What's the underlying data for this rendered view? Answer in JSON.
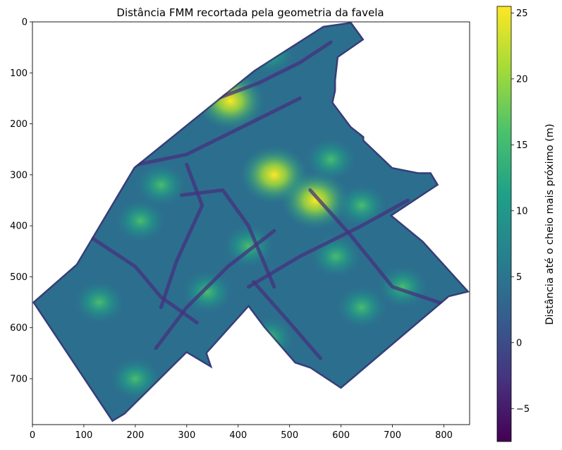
{
  "chart_data": {
    "type": "heatmap",
    "title": "Distância FMM recortada pela geometria da favela",
    "xlabel": "",
    "ylabel": "",
    "xlim": [
      0,
      850
    ],
    "ylim": [
      790,
      0
    ],
    "x_ticks": [
      0,
      100,
      200,
      300,
      400,
      500,
      600,
      700,
      800
    ],
    "y_ticks": [
      0,
      100,
      200,
      300,
      400,
      500,
      600,
      700
    ],
    "colorbar": {
      "label": "Distância até o cheio mais próximo (m)",
      "range": [
        -7.5,
        25.5
      ],
      "ticks": [
        -5,
        0,
        5,
        10,
        15,
        20,
        25
      ],
      "colormap": "viridis"
    },
    "region_outline": [
      [
        0,
        550
      ],
      [
        85,
        475
      ],
      [
        197,
        285
      ],
      [
        430,
        95
      ],
      [
        565,
        8
      ],
      [
        620,
        0
      ],
      [
        645,
        35
      ],
      [
        595,
        70
      ],
      [
        590,
        115
      ],
      [
        590,
        135
      ],
      [
        585,
        158
      ],
      [
        620,
        205
      ],
      [
        645,
        225
      ],
      [
        645,
        232
      ],
      [
        700,
        285
      ],
      [
        750,
        295
      ],
      [
        775,
        295
      ],
      [
        790,
        320
      ],
      [
        730,
        360
      ],
      [
        700,
        380
      ],
      [
        760,
        430
      ],
      [
        850,
        530
      ],
      [
        810,
        540
      ],
      [
        600,
        720
      ],
      [
        540,
        680
      ],
      [
        510,
        670
      ],
      [
        450,
        600
      ],
      [
        420,
        560
      ],
      [
        340,
        650
      ],
      [
        350,
        680
      ],
      [
        300,
        650
      ],
      [
        250,
        700
      ],
      [
        180,
        770
      ],
      [
        155,
        785
      ],
      [
        0,
        550
      ]
    ],
    "streets": [
      [
        [
          110,
          420
        ],
        [
          200,
          480
        ],
        [
          250,
          540
        ],
        [
          320,
          590
        ]
      ],
      [
        [
          155,
          290
        ],
        [
          300,
          260
        ],
        [
          420,
          200
        ],
        [
          520,
          150
        ]
      ],
      [
        [
          290,
          340
        ],
        [
          370,
          330
        ],
        [
          420,
          400
        ],
        [
          470,
          520
        ]
      ],
      [
        [
          240,
          640
        ],
        [
          300,
          560
        ],
        [
          380,
          480
        ],
        [
          470,
          410
        ]
      ],
      [
        [
          420,
          520
        ],
        [
          520,
          460
        ],
        [
          640,
          400
        ],
        [
          730,
          350
        ]
      ],
      [
        [
          300,
          280
        ],
        [
          330,
          360
        ],
        [
          280,
          470
        ],
        [
          250,
          560
        ]
      ],
      [
        [
          430,
          510
        ],
        [
          500,
          590
        ],
        [
          560,
          660
        ]
      ],
      [
        [
          540,
          330
        ],
        [
          620,
          420
        ],
        [
          700,
          520
        ],
        [
          820,
          560
        ]
      ],
      [
        [
          360,
          150
        ],
        [
          440,
          120
        ],
        [
          520,
          80
        ],
        [
          580,
          40
        ]
      ]
    ],
    "hotspots": [
      {
        "x": 470,
        "y": 300,
        "value": 24.5
      },
      {
        "x": 385,
        "y": 155,
        "value": 22
      },
      {
        "x": 550,
        "y": 350,
        "value": 20
      },
      {
        "x": 640,
        "y": 360,
        "value": 18
      },
      {
        "x": 210,
        "y": 390,
        "value": 16
      },
      {
        "x": 130,
        "y": 550,
        "value": 15
      },
      {
        "x": 720,
        "y": 520,
        "value": 17
      },
      {
        "x": 420,
        "y": 440,
        "value": 16
      },
      {
        "x": 590,
        "y": 460,
        "value": 15
      },
      {
        "x": 200,
        "y": 700,
        "value": 14
      },
      {
        "x": 640,
        "y": 560,
        "value": 15
      },
      {
        "x": 460,
        "y": 620,
        "value": 14
      },
      {
        "x": 250,
        "y": 320,
        "value": 13
      },
      {
        "x": 340,
        "y": 530,
        "value": 14
      },
      {
        "x": 580,
        "y": 270,
        "value": 15
      },
      {
        "x": 460,
        "y": 60,
        "value": 13
      }
    ]
  }
}
